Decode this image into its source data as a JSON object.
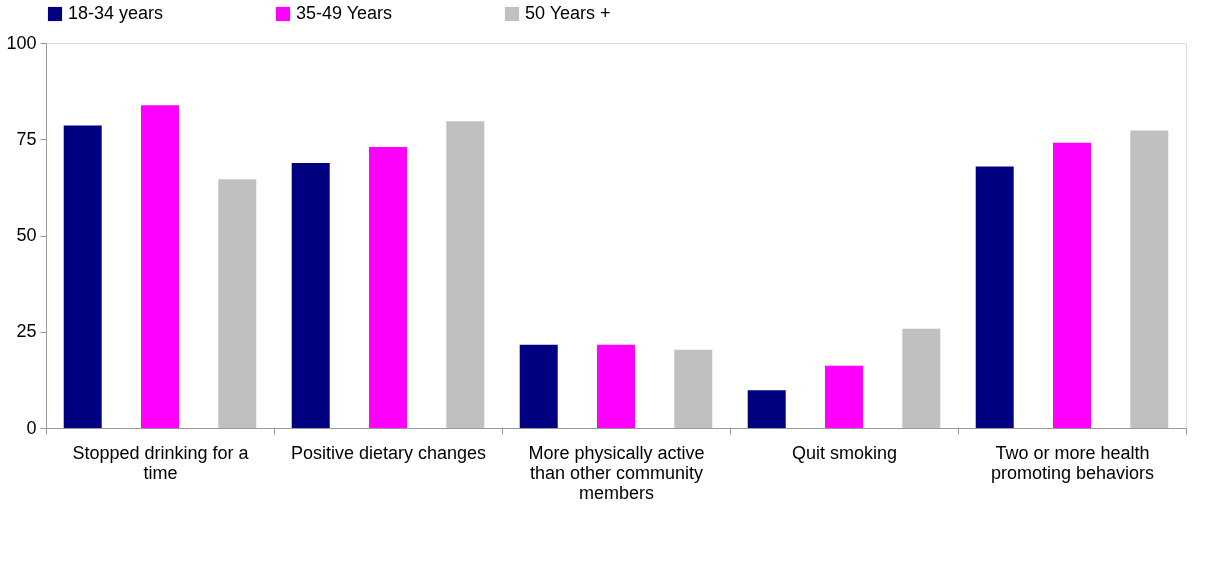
{
  "chart_data": {
    "type": "bar",
    "categories": [
      "Stopped drinking for a time",
      "Positive dietary changes",
      "More physically active than other community members",
      "Quit smoking",
      "Two or more health promoting behaviors"
    ],
    "series": [
      {
        "name": "18-34 years",
        "color": "#000080",
        "values": [
          78.6,
          68.8,
          21.6,
          9.8,
          67.9
        ]
      },
      {
        "name": "35-49 Years",
        "color": "#ff00ff",
        "values": [
          83.8,
          73.0,
          21.6,
          16.2,
          74.1
        ]
      },
      {
        "name": "50 Years +",
        "color": "#c0c0c0",
        "values": [
          64.6,
          79.7,
          20.3,
          25.8,
          77.3
        ]
      }
    ],
    "ylim": [
      0,
      100
    ],
    "yticks": [
      0,
      25,
      50,
      75,
      100
    ],
    "grid": false,
    "legend": "top"
  }
}
